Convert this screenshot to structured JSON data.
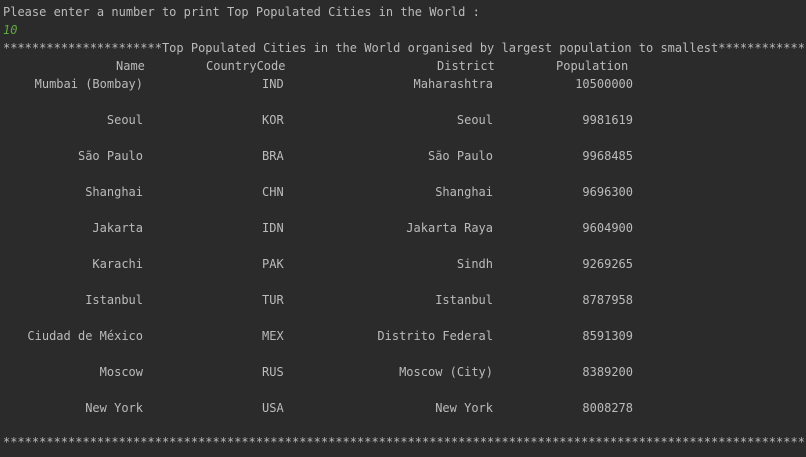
{
  "console": {
    "prompt": "Please enter a number to print Top Populated Cities in the World :",
    "user_input": "10",
    "banner": "**********************Top Populated Cities in the World organised by largest population to smallest****************",
    "footer": "****************************************************************************************************************"
  },
  "table": {
    "headers": {
      "name": "Name",
      "country_code": "CountryCode",
      "district": "District",
      "population": "Population"
    },
    "rows": [
      {
        "name": "Mumbai (Bombay)",
        "country_code": "IND",
        "district": "Maharashtra",
        "population": "10500000"
      },
      {
        "name": "Seoul",
        "country_code": "KOR",
        "district": "Seoul",
        "population": "9981619"
      },
      {
        "name": "São Paulo",
        "country_code": "BRA",
        "district": "São Paulo",
        "population": "9968485"
      },
      {
        "name": "Shanghai",
        "country_code": "CHN",
        "district": "Shanghai",
        "population": "9696300"
      },
      {
        "name": "Jakarta",
        "country_code": "IDN",
        "district": "Jakarta Raya",
        "population": "9604900"
      },
      {
        "name": "Karachi",
        "country_code": "PAK",
        "district": "Sindh",
        "population": "9269265"
      },
      {
        "name": "Istanbul",
        "country_code": "TUR",
        "district": "Istanbul",
        "population": "8787958"
      },
      {
        "name": "Ciudad de México",
        "country_code": "MEX",
        "district": "Distrito Federal",
        "population": "8591309"
      },
      {
        "name": "Moscow",
        "country_code": "RUS",
        "district": "Moscow (City)",
        "population": "8389200"
      },
      {
        "name": "New York",
        "country_code": "USA",
        "district": "New York",
        "population": "8008278"
      }
    ]
  }
}
